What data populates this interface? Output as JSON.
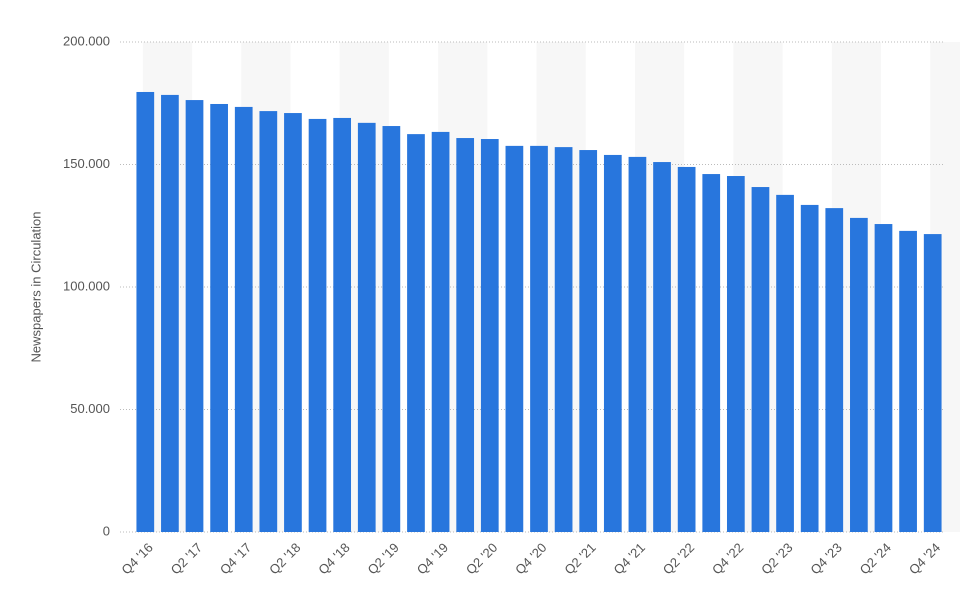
{
  "chart_data": {
    "type": "bar",
    "y_label": "Newspapers in Circulation",
    "categories": [
      "Q4 '16",
      null,
      "Q2 '17",
      null,
      "Q4 '17",
      null,
      "Q2 '18",
      null,
      "Q4 '18",
      null,
      "Q2 '19",
      null,
      "Q4 '19",
      null,
      "Q2 '20",
      null,
      "Q4 '20",
      null,
      "Q2 '21",
      null,
      "Q4 '21",
      null,
      "Q2 '22",
      null,
      "Q4 '22",
      null,
      "Q2 '23",
      null,
      "Q4 '23",
      null,
      "Q2 '24",
      null,
      "Q4 '24"
    ],
    "values": [
      179600,
      178400,
      176300,
      174700,
      173500,
      171800,
      171000,
      168600,
      169000,
      167000,
      165700,
      162400,
      163300,
      160800,
      160400,
      157600,
      157600,
      157100,
      155900,
      153900,
      153100,
      151000,
      149000,
      146100,
      145300,
      140800,
      137600,
      133500,
      132200,
      128200,
      125700,
      122900,
      121600
    ],
    "color": "#2876dd",
    "ylim": [
      0,
      200000
    ],
    "yticks": [
      0,
      {
        "value": 50000,
        "label": "50.000"
      },
      {
        "value": 100000,
        "label": "100.000"
      },
      {
        "value": 150000,
        "label": "150.000"
      },
      {
        "value": 200000,
        "label": "200.000"
      }
    ],
    "grid": true
  }
}
